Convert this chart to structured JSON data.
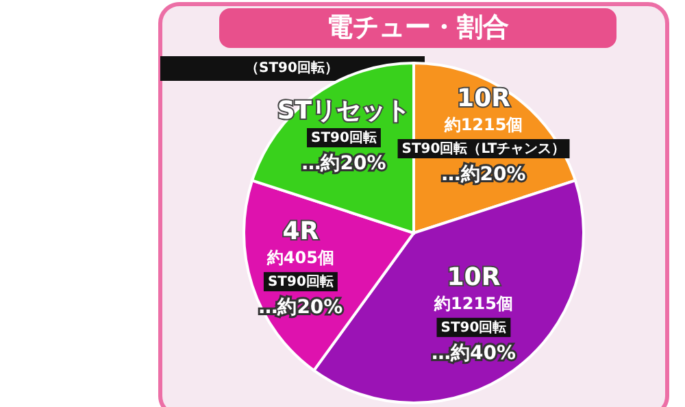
{
  "chart_data": {
    "type": "pie",
    "title": "電チュー・割合",
    "subtitle": "（ST90回転）",
    "categories": [
      "10R\n約1215個\nST90回転（LTチャンス）",
      "10R\n約1215個\nST90回転",
      "4R\n約405個\nST90回転",
      "STリセット\nST90回転"
    ],
    "values": [
      20,
      40,
      20,
      20
    ],
    "colors": [
      "#f7931e",
      "#9b13b5",
      "#de12ae",
      "#39d11c"
    ],
    "value_labels": [
      "…約20%",
      "…約40%",
      "…約20%",
      "…約20%"
    ],
    "legend": false
  }
}
